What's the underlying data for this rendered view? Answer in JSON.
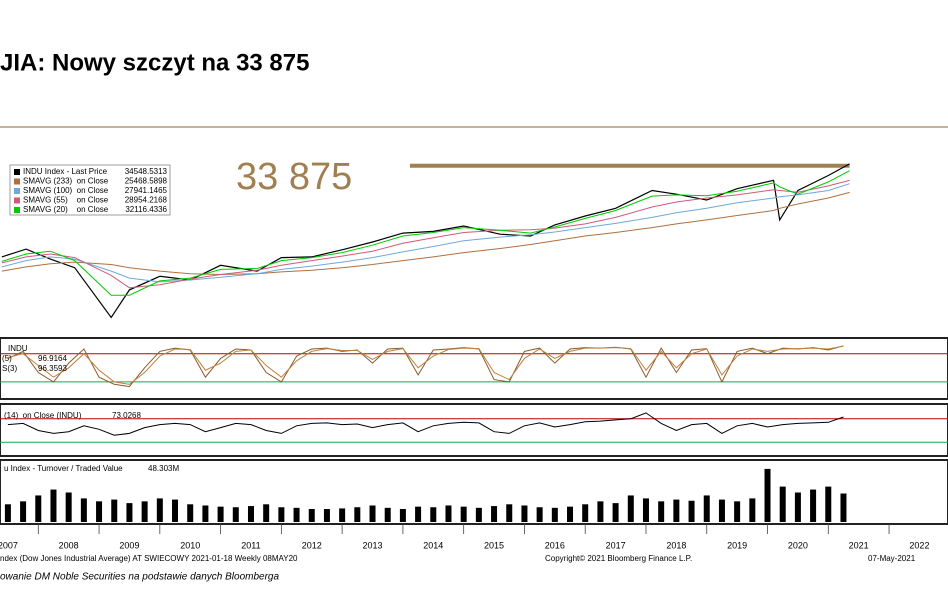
{
  "header": {
    "title": "JIA: Nowy szczyt na 33 875"
  },
  "footer": {
    "source": "ndex (Dow Jones Industrial Average) AT SWIECOWY 2021-01-18  Weekly 08MAY20",
    "copyright": "Copyright© 2021 Bloomberg Finance L.P.",
    "date": "07-May-2021",
    "note": "owanie DM Noble Securities  na podstawie danych Bloomberga"
  },
  "chart_data": [
    {
      "type": "line",
      "log_scale": true,
      "xlim": [
        2007.37,
        2022.97
      ],
      "ylim": [
        5500,
        36000
      ],
      "xticks": [
        2007,
        2008,
        2009,
        2010,
        2011,
        2012,
        2013,
        2014,
        2015,
        2016,
        2017,
        2018,
        2019,
        2020,
        2021,
        2022
      ],
      "annotation": "33 875",
      "ref_lines": [
        {
          "value": 33875,
          "color": "#a08050"
        }
      ],
      "x": [
        2007.4,
        2007.8,
        2008.2,
        2008.6,
        2009.2,
        2009.5,
        2010,
        2010.5,
        2011,
        2011.6,
        2012,
        2012.5,
        2013,
        2013.5,
        2014,
        2014.5,
        2015,
        2015.6,
        2016.1,
        2016.5,
        2017,
        2017.5,
        2018.1,
        2018.5,
        2019,
        2019.5,
        2020.1,
        2020.2,
        2020.5,
        2021,
        2021.35
      ],
      "series": [
        {
          "name": "INDU Index - Last Price",
          "color": "#000000",
          "values": [
            12800,
            13900,
            12500,
            11400,
            6700,
            9000,
            10400,
            10000,
            11700,
            11000,
            12700,
            12800,
            13800,
            15000,
            16500,
            16800,
            17800,
            16300,
            16000,
            18000,
            19800,
            21500,
            26000,
            25000,
            23500,
            26500,
            29000,
            19000,
            26000,
            30500,
            34548.5313
          ]
        },
        {
          "name": "SMAVG (233)  on Close",
          "color": "#b07040",
          "values": [
            11000,
            11500,
            11900,
            12100,
            11800,
            11400,
            11000,
            10700,
            10600,
            10700,
            10900,
            11100,
            11400,
            11800,
            12300,
            12800,
            13400,
            14000,
            14600,
            15200,
            16000,
            16600,
            17500,
            18200,
            19000,
            19900,
            21000,
            21500,
            22500,
            24000,
            25468.5898
          ]
        },
        {
          "name": "SMAVG (100)  on Close",
          "color": "#6fa8dc",
          "values": [
            11500,
            12300,
            12800,
            12500,
            11000,
            10200,
            9800,
            10000,
            10300,
            10700,
            11200,
            11600,
            12100,
            12700,
            13500,
            14300,
            15200,
            15800,
            16200,
            16700,
            17500,
            18300,
            19500,
            20500,
            21500,
            22800,
            24000,
            24300,
            24800,
            26000,
            27941.1465
          ]
        },
        {
          "name": "SMAVG (55)    on Close",
          "color": "#d05a7a",
          "values": [
            12000,
            12800,
            13200,
            12700,
            10500,
            9200,
            9500,
            10100,
            10600,
            11100,
            11700,
            12300,
            12900,
            13600,
            14800,
            15700,
            16600,
            17000,
            17100,
            17400,
            18200,
            19500,
            21800,
            23000,
            24000,
            24800,
            26200,
            26000,
            25500,
            27300,
            28954.2168
          ]
        },
        {
          "name": "SMAVG (20)    on Close",
          "color": "#00cc00",
          "values": [
            12200,
            13200,
            13600,
            12300,
            8500,
            8500,
            9900,
            10200,
            11200,
            11300,
            12300,
            12700,
            13400,
            14500,
            16000,
            16600,
            17500,
            17000,
            16500,
            17600,
            19300,
            21000,
            24500,
            24800,
            24600,
            25800,
            28200,
            27000,
            25000,
            28500,
            32116.4336
          ]
        }
      ]
    },
    {
      "type": "line",
      "title": "INDU",
      "ylim": [
        -10,
        105
      ],
      "ref_lines": [
        {
          "value": 80,
          "color": "#c00000"
        },
        {
          "value": 20,
          "color": "#00b050"
        }
      ],
      "x": [
        2007.5,
        2007.75,
        2008,
        2008.25,
        2008.5,
        2008.75,
        2009,
        2009.25,
        2009.5,
        2009.75,
        2010,
        2010.25,
        2010.5,
        2010.75,
        2011,
        2011.25,
        2011.5,
        2011.75,
        2012,
        2012.25,
        2012.5,
        2012.75,
        2013,
        2013.25,
        2013.5,
        2013.75,
        2014,
        2014.25,
        2014.5,
        2014.75,
        2015,
        2015.25,
        2015.5,
        2015.75,
        2016,
        2016.25,
        2016.5,
        2016.75,
        2017,
        2017.25,
        2017.5,
        2017.75,
        2018,
        2018.25,
        2018.5,
        2018.75,
        2019,
        2019.25,
        2019.5,
        2019.75,
        2020,
        2020.25,
        2020.5,
        2020.75,
        2021,
        2021.25
      ],
      "series": [
        {
          "name": "(5)",
          "color": "#8b5a2b",
          "values": [
            70,
            85,
            40,
            20,
            60,
            90,
            30,
            15,
            10,
            50,
            85,
            92,
            88,
            30,
            70,
            90,
            88,
            40,
            20,
            75,
            90,
            92,
            85,
            88,
            60,
            90,
            92,
            35,
            88,
            90,
            93,
            90,
            25,
            20,
            85,
            92,
            60,
            90,
            93,
            92,
            94,
            90,
            30,
            92,
            40,
            88,
            91,
            20,
            85,
            92,
            80,
            92,
            90,
            93,
            88,
            96.9164
          ]
        },
        {
          "name": "S(3)",
          "color": "#c08040",
          "values": [
            72,
            80,
            55,
            30,
            50,
            80,
            45,
            20,
            15,
            40,
            75,
            90,
            89,
            45,
            60,
            85,
            88,
            55,
            30,
            65,
            85,
            91,
            87,
            87,
            68,
            85,
            91,
            50,
            75,
            89,
            92,
            91,
            40,
            25,
            70,
            90,
            70,
            85,
            92,
            92,
            93,
            91,
            45,
            85,
            50,
            80,
            90,
            35,
            75,
            90,
            85,
            90,
            91,
            92,
            90,
            96.3593
          ]
        }
      ]
    },
    {
      "type": "line",
      "ylim": [
        10,
        90
      ],
      "ref_lines": [
        {
          "value": 70,
          "color": "#c00000"
        },
        {
          "value": 30,
          "color": "#00b050"
        }
      ],
      "x": [
        2007.5,
        2007.75,
        2008,
        2008.25,
        2008.5,
        2008.75,
        2009,
        2009.25,
        2009.5,
        2009.75,
        2010,
        2010.25,
        2010.5,
        2010.75,
        2011,
        2011.25,
        2011.5,
        2011.75,
        2012,
        2012.25,
        2012.5,
        2012.75,
        2013,
        2013.25,
        2013.5,
        2013.75,
        2014,
        2014.25,
        2014.5,
        2014.75,
        2015,
        2015.25,
        2015.5,
        2015.75,
        2016,
        2016.25,
        2016.5,
        2016.75,
        2017,
        2017.25,
        2017.5,
        2017.75,
        2018,
        2018.25,
        2018.5,
        2018.75,
        2019,
        2019.25,
        2019.5,
        2019.75,
        2020,
        2020.25,
        2020.5,
        2020.75,
        2021,
        2021.25
      ],
      "series": [
        {
          "name": "(14)  on Close (INDU)",
          "color": "#000000",
          "values": [
            60,
            62,
            50,
            45,
            48,
            58,
            52,
            42,
            45,
            55,
            60,
            62,
            60,
            48,
            55,
            62,
            60,
            50,
            45,
            58,
            62,
            63,
            60,
            61,
            55,
            60,
            63,
            48,
            58,
            62,
            64,
            63,
            48,
            45,
            58,
            63,
            56,
            60,
            65,
            66,
            68,
            70,
            80,
            62,
            50,
            60,
            62,
            45,
            58,
            62,
            56,
            60,
            62,
            63,
            64,
            73.0268
          ]
        }
      ]
    },
    {
      "type": "bar",
      "ylim": [
        0,
        100
      ],
      "x": [
        2007.5,
        2007.75,
        2008,
        2008.25,
        2008.5,
        2008.75,
        2009,
        2009.25,
        2009.5,
        2009.75,
        2010,
        2010.25,
        2010.5,
        2010.75,
        2011,
        2011.25,
        2011.5,
        2011.75,
        2012,
        2012.25,
        2012.5,
        2012.75,
        2013,
        2013.25,
        2013.5,
        2013.75,
        2014,
        2014.25,
        2014.5,
        2014.75,
        2015,
        2015.25,
        2015.5,
        2015.75,
        2016,
        2016.25,
        2016.5,
        2016.75,
        2017,
        2017.25,
        2017.5,
        2017.75,
        2018,
        2018.25,
        2018.5,
        2018.75,
        2019,
        2019.25,
        2019.5,
        2019.75,
        2020,
        2020.25,
        2020.5,
        2020.75,
        2021,
        2021.25
      ],
      "series": [
        {
          "name": "u Index - Turnover / Traded Value",
          "color": "#000000",
          "values": [
            30,
            35,
            45,
            55,
            50,
            40,
            35,
            38,
            32,
            35,
            40,
            38,
            30,
            28,
            26,
            25,
            27,
            30,
            25,
            24,
            22,
            22,
            23,
            25,
            28,
            24,
            22,
            26,
            25,
            28,
            26,
            24,
            27,
            30,
            28,
            25,
            24,
            26,
            30,
            35,
            32,
            45,
            40,
            35,
            38,
            36,
            45,
            38,
            35,
            40,
            90,
            60,
            50,
            55,
            60,
            48.303
          ],
          "value_labels": [
            null,
            null,
            null,
            null,
            null,
            null,
            null,
            null,
            null,
            null,
            null,
            null,
            null,
            null,
            null,
            null,
            null,
            null,
            null,
            null,
            null,
            null,
            null,
            null,
            null,
            null,
            null,
            null,
            null,
            null,
            null,
            null,
            null,
            null,
            null,
            null,
            null,
            null,
            null,
            null,
            null,
            null,
            null,
            null,
            null,
            null,
            null,
            null,
            null,
            null,
            null,
            null,
            null,
            null,
            null,
            "48.303M"
          ]
        }
      ]
    }
  ]
}
